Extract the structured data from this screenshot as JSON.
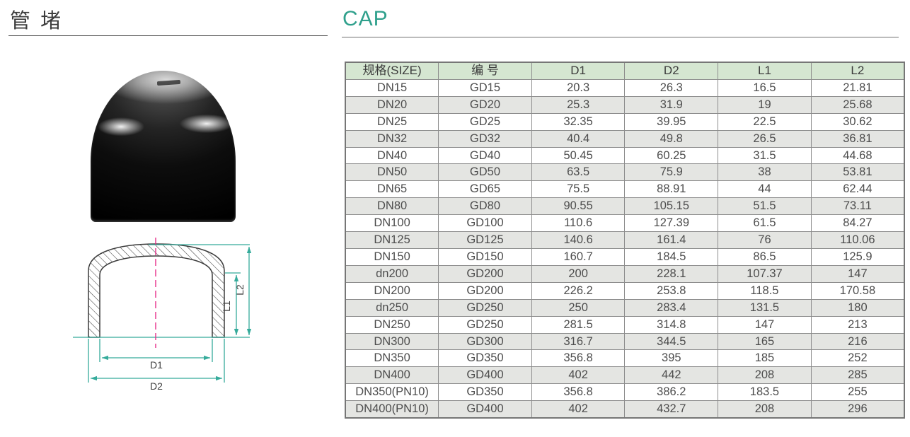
{
  "header": {
    "title_cn": "管 堵",
    "title_en": "CAP"
  },
  "colors": {
    "accent_teal": "#2fa08c",
    "drawing_dimension_line": "#35ab9b",
    "drawing_centerline_pink": "#e62e8a",
    "table_header_bg": "#d5e6d1",
    "table_alt_row_bg": "#e4e5e2",
    "table_border": "#8d8d8d",
    "body_text": "#4d4d4d"
  },
  "drawing": {
    "dim_d1": "D1",
    "dim_d2": "D2",
    "dim_l1": "L1",
    "dim_l2": "L2"
  },
  "table": {
    "columns": [
      "规格(SIZE)",
      "编 号",
      "D1",
      "D2",
      "L1",
      "L2"
    ],
    "rows": [
      [
        "DN15",
        "GD15",
        "20.3",
        "26.3",
        "16.5",
        "21.81"
      ],
      [
        "DN20",
        "GD20",
        "25.3",
        "31.9",
        "19",
        "25.68"
      ],
      [
        "DN25",
        "GD25",
        "32.35",
        "39.95",
        "22.5",
        "30.62"
      ],
      [
        "DN32",
        "GD32",
        "40.4",
        "49.8",
        "26.5",
        "36.81"
      ],
      [
        "DN40",
        "GD40",
        "50.45",
        "60.25",
        "31.5",
        "44.68"
      ],
      [
        "DN50",
        "GD50",
        "63.5",
        "75.9",
        "38",
        "53.81"
      ],
      [
        "DN65",
        "GD65",
        "75.5",
        "88.91",
        "44",
        "62.44"
      ],
      [
        "DN80",
        "GD80",
        "90.55",
        "105.15",
        "51.5",
        "73.11"
      ],
      [
        "DN100",
        "GD100",
        "110.6",
        "127.39",
        "61.5",
        "84.27"
      ],
      [
        "DN125",
        "GD125",
        "140.6",
        "161.4",
        "76",
        "110.06"
      ],
      [
        "DN150",
        "GD150",
        "160.7",
        "184.5",
        "86.5",
        "125.9"
      ],
      [
        "dn200",
        "GD200",
        "200",
        "228.1",
        "107.37",
        "147"
      ],
      [
        "DN200",
        "GD200",
        "226.2",
        "253.8",
        "118.5",
        "170.58"
      ],
      [
        "dn250",
        "GD250",
        "250",
        "283.4",
        "131.5",
        "180"
      ],
      [
        "DN250",
        "GD250",
        "281.5",
        "314.8",
        "147",
        "213"
      ],
      [
        "DN300",
        "GD300",
        "316.7",
        "344.5",
        "165",
        "216"
      ],
      [
        "DN350",
        "GD350",
        "356.8",
        "395",
        "185",
        "252"
      ],
      [
        "DN400",
        "GD400",
        "402",
        "442",
        "208",
        "285"
      ],
      [
        "DN350(PN10)",
        "GD350",
        "356.8",
        "386.2",
        "183.5",
        "255"
      ],
      [
        "DN400(PN10)",
        "GD400",
        "402",
        "432.7",
        "208",
        "296"
      ]
    ]
  }
}
